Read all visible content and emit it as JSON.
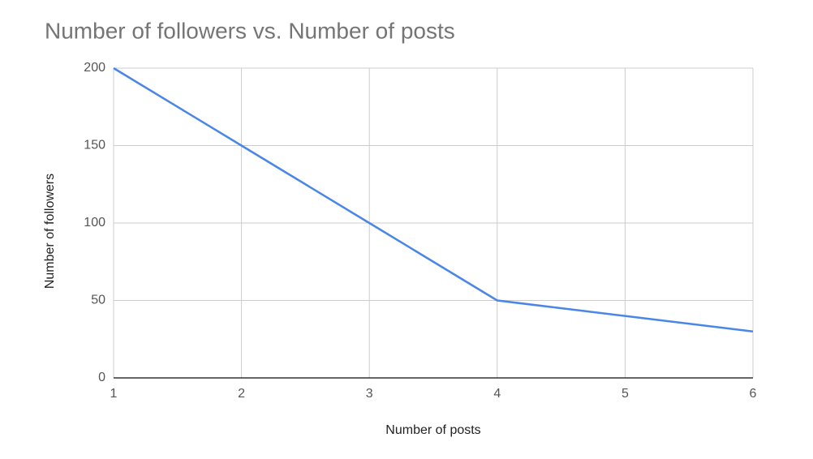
{
  "chart_data": {
    "type": "line",
    "title": "Number of followers vs. Number of posts",
    "x_label": "Number of posts",
    "y_label": "Number of followers",
    "x": [
      1,
      2,
      3,
      4,
      5,
      6
    ],
    "values": [
      200,
      150,
      100,
      50,
      40,
      30
    ],
    "color": "#4a86e8",
    "xlim": [
      1,
      6
    ],
    "xticks": [
      1,
      2,
      3,
      4,
      5,
      6
    ],
    "ylim": [
      0,
      200
    ],
    "yticks": [
      0,
      50,
      100,
      150,
      200
    ],
    "grid": true
  }
}
